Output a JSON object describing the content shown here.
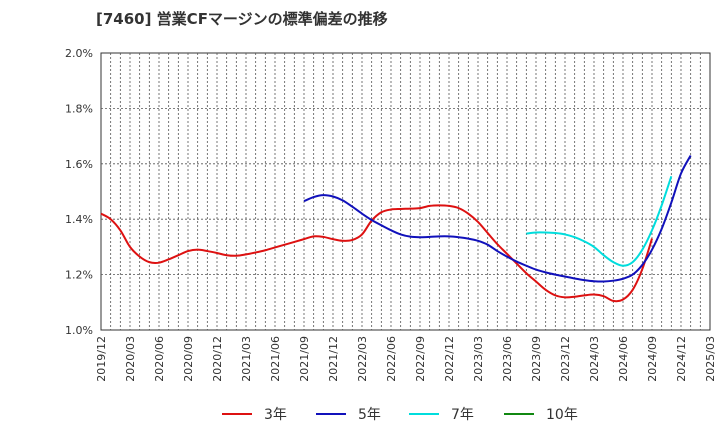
{
  "chart_data": {
    "type": "line",
    "title": "[7460]  営業CFマージンの標準偏差の推移",
    "xlabel": "",
    "ylabel": "",
    "ylim": [
      1.0,
      2.0
    ],
    "yticks": [
      1.0,
      1.2,
      1.4,
      1.6,
      1.8,
      2.0
    ],
    "y_tick_labels": [
      "1.0%",
      "1.2%",
      "1.4%",
      "1.6%",
      "1.8%",
      "2.0%"
    ],
    "x_tick_labels": [
      "2019/12",
      "2020/03",
      "2020/06",
      "2020/09",
      "2020/12",
      "2021/03",
      "2021/06",
      "2021/09",
      "2021/12",
      "2022/03",
      "2022/06",
      "2022/09",
      "2022/12",
      "2023/03",
      "2023/06",
      "2023/09",
      "2023/12",
      "2024/03",
      "2024/06",
      "2024/09",
      "2024/12",
      "2025/03"
    ],
    "x_months": [
      "2019/12",
      "2020/01",
      "2020/02",
      "2020/03",
      "2020/04",
      "2020/05",
      "2020/06",
      "2020/07",
      "2020/08",
      "2020/09",
      "2020/10",
      "2020/11",
      "2020/12",
      "2021/01",
      "2021/02",
      "2021/03",
      "2021/04",
      "2021/05",
      "2021/06",
      "2021/07",
      "2021/08",
      "2021/09",
      "2021/10",
      "2021/11",
      "2021/12",
      "2022/01",
      "2022/02",
      "2022/03",
      "2022/04",
      "2022/05",
      "2022/06",
      "2022/07",
      "2022/08",
      "2022/09",
      "2022/10",
      "2022/11",
      "2022/12",
      "2023/01",
      "2023/02",
      "2023/03",
      "2023/04",
      "2023/05",
      "2023/06",
      "2023/07",
      "2023/08",
      "2023/09",
      "2023/10",
      "2023/11",
      "2023/12",
      "2024/01",
      "2024/02",
      "2024/03",
      "2024/04",
      "2024/05",
      "2024/06",
      "2024/07",
      "2024/08",
      "2024/09"
    ],
    "grid": true,
    "legend_position": "bottom",
    "series": [
      {
        "name": "3年",
        "color": "#dd1111",
        "start": "2019/12",
        "values": [
          1.42,
          1.4,
          1.36,
          1.3,
          1.265,
          1.245,
          1.243,
          1.255,
          1.27,
          1.285,
          1.29,
          1.285,
          1.278,
          1.27,
          1.268,
          1.273,
          1.28,
          1.288,
          1.298,
          1.308,
          1.318,
          1.328,
          1.338,
          1.336,
          1.328,
          1.322,
          1.325,
          1.345,
          1.395,
          1.425,
          1.435,
          1.437,
          1.438,
          1.44,
          1.448,
          1.45,
          1.448,
          1.44,
          1.42,
          1.39,
          1.35,
          1.31,
          1.275,
          1.24,
          1.205,
          1.175,
          1.145,
          1.125,
          1.118,
          1.12,
          1.125,
          1.128,
          1.122,
          1.105,
          1.11,
          1.145,
          1.22,
          1.33
        ]
      },
      {
        "name": "5年",
        "color": "#1111bb",
        "start": "2021/09",
        "values": [
          1.465,
          1.48,
          1.487,
          1.482,
          1.468,
          1.445,
          1.42,
          1.397,
          1.378,
          1.36,
          1.345,
          1.337,
          1.335,
          1.336,
          1.338,
          1.338,
          1.335,
          1.33,
          1.322,
          1.308,
          1.285,
          1.265,
          1.247,
          1.232,
          1.218,
          1.208,
          1.2,
          1.193,
          1.186,
          1.18,
          1.176,
          1.175,
          1.178,
          1.185,
          1.2,
          1.235,
          1.29,
          1.365,
          1.46,
          1.565,
          1.63
        ]
      },
      {
        "name": "7年",
        "color": "#00dddd",
        "start": "2023/08",
        "values": [
          1.348,
          1.352,
          1.352,
          1.35,
          1.345,
          1.335,
          1.32,
          1.3,
          1.27,
          1.245,
          1.232,
          1.245,
          1.29,
          1.36,
          1.45,
          1.555
        ]
      },
      {
        "name": "10年",
        "color": "#118811",
        "start": "2019/12",
        "values": []
      }
    ]
  }
}
